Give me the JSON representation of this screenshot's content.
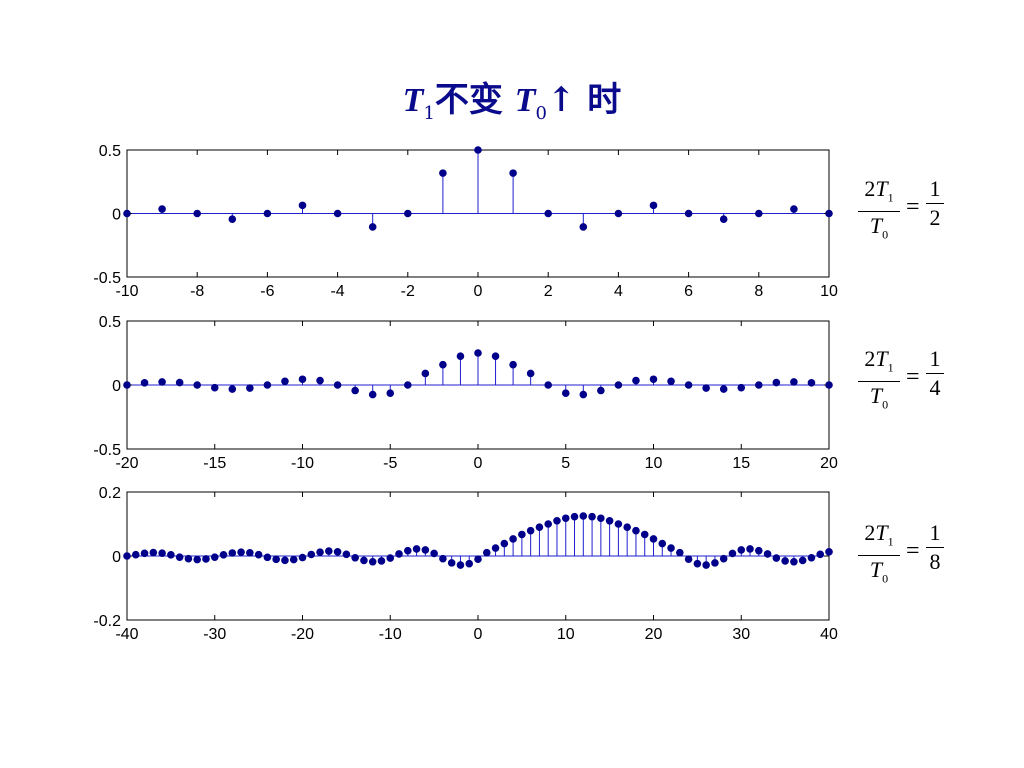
{
  "title": {
    "t1": "T",
    "t1_sub": "1",
    "middle": "不变 ",
    "t0": "T",
    "t0_sub": "0",
    "tail": "↑ 时"
  },
  "formulas": [
    {
      "num_coef": "2",
      "num_var": "T",
      "num_sub": "1",
      "den_var": "T",
      "den_sub": "0",
      "eq": "=",
      "rhs_num": "1",
      "rhs_den": "2"
    },
    {
      "num_coef": "2",
      "num_var": "T",
      "num_sub": "1",
      "den_var": "T",
      "den_sub": "0",
      "eq": "=",
      "rhs_num": "1",
      "rhs_den": "4"
    },
    {
      "num_coef": "2",
      "num_var": "T",
      "num_sub": "1",
      "den_var": "T",
      "den_sub": "0",
      "eq": "=",
      "rhs_num": "1",
      "rhs_den": "8"
    }
  ],
  "colors": {
    "stem": "#1f1fd0",
    "marker": "#00008b",
    "axes": "#000000"
  },
  "chart_data": [
    {
      "type": "stem",
      "xlim": [
        -10,
        10
      ],
      "ylim": [
        -0.5,
        0.5
      ],
      "xticks": [
        "-10",
        "-8",
        "-6",
        "-4",
        "-2",
        "0",
        "2",
        "4",
        "6",
        "8",
        "10"
      ],
      "yticks": [
        "-0.5",
        "0",
        "0.5"
      ],
      "x": [
        -10,
        -9,
        -8,
        -7,
        -6,
        -5,
        -4,
        -3,
        -2,
        -1,
        0,
        1,
        2,
        3,
        4,
        5,
        6,
        7,
        8,
        9,
        10
      ],
      "y": [
        0,
        0.035,
        0,
        -0.045,
        0,
        0.064,
        0,
        -0.106,
        0,
        0.318,
        0.5,
        0.318,
        0,
        -0.106,
        0,
        0.064,
        0,
        -0.045,
        0,
        0.035,
        0
      ]
    },
    {
      "type": "stem",
      "xlim": [
        -20,
        20
      ],
      "ylim": [
        -0.5,
        0.5
      ],
      "xticks": [
        "-20",
        "-15",
        "-10",
        "-5",
        "0",
        "5",
        "10",
        "15",
        "20"
      ],
      "yticks": [
        "-0.5",
        "0",
        "0.5"
      ],
      "x": [
        -20,
        -19,
        -18,
        -17,
        -16,
        -15,
        -14,
        -13,
        -12,
        -11,
        -10,
        -9,
        -8,
        -7,
        -6,
        -5,
        -4,
        -3,
        -2,
        -1,
        0,
        1,
        2,
        3,
        4,
        5,
        6,
        7,
        8,
        9,
        10,
        11,
        12,
        13,
        14,
        15,
        16,
        17,
        18,
        19,
        20
      ],
      "y": [
        0,
        0.017,
        0.024,
        0.019,
        0,
        -0.021,
        -0.032,
        -0.024,
        0,
        0.029,
        0.045,
        0.035,
        0,
        -0.043,
        -0.075,
        -0.064,
        0,
        0.09,
        0.159,
        0.225,
        0.25,
        0.225,
        0.159,
        0.09,
        0,
        -0.064,
        -0.075,
        -0.043,
        0,
        0.035,
        0.045,
        0.029,
        0,
        -0.024,
        -0.032,
        -0.021,
        0,
        0.019,
        0.024,
        0.017,
        0
      ]
    },
    {
      "type": "stem",
      "xlim": [
        -40,
        40
      ],
      "ylim": [
        -0.2,
        0.2
      ],
      "xticks": [
        "-40",
        "-30",
        "-20",
        "-10",
        "0",
        "10",
        "20",
        "30",
        "40"
      ],
      "yticks": [
        "-0.2",
        "0",
        "0.2"
      ],
      "x": [
        -40,
        -39,
        -38,
        -37,
        -36,
        -35,
        -34,
        -33,
        -32,
        -31,
        -30,
        -29,
        -28,
        -27,
        -26,
        -25,
        -24,
        -23,
        -22,
        -21,
        -20,
        -19,
        -18,
        -17,
        -16,
        -15,
        -14,
        -13,
        -12,
        -11,
        -10,
        -9,
        -8,
        -7,
        -6,
        -5,
        -4,
        -3,
        -2,
        -1,
        0,
        1,
        2,
        3,
        4,
        5,
        6,
        7,
        8,
        9,
        10,
        11,
        12,
        13,
        14,
        15,
        16,
        17,
        18,
        19,
        20,
        21,
        22,
        23,
        24,
        25,
        26,
        27,
        28,
        29,
        30,
        31,
        32,
        33,
        34,
        35,
        36,
        37,
        38,
        39,
        40
      ],
      "y": [
        0,
        0.0041,
        0.0083,
        0.0106,
        0.0088,
        0.0036,
        -0.0036,
        -0.0085,
        -0.0111,
        -0.0092,
        -0.0038,
        0.0038,
        0.0094,
        0.0121,
        0.0101,
        0.0042,
        -0.0042,
        -0.0104,
        -0.0136,
        -0.0113,
        -0.0047,
        0.0047,
        0.0118,
        0.0153,
        0.013,
        0.0054,
        -0.0055,
        -0.0138,
        -0.018,
        -0.0153,
        -0.0064,
        0.0066,
        0.0167,
        0.0221,
        0.019,
        0.0081,
        -0.0085,
        -0.0215,
        -0.0283,
        -0.024,
        -0.01,
        0.0104,
        0.0249,
        0.0389,
        0.0535,
        0.0672,
        0.0791,
        0.09,
        0.1,
        0.11,
        0.118,
        0.123,
        0.125,
        0.123,
        0.118,
        0.11,
        0.1,
        0.09,
        0.0791,
        0.0672,
        0.0535,
        0.0389,
        0.0249,
        0.0104,
        -0.01,
        -0.024,
        -0.0283,
        -0.0215,
        -0.0085,
        0.0081,
        0.019,
        0.0221,
        0.0167,
        0.0066,
        -0.0064,
        -0.0153,
        -0.018,
        -0.0138,
        -0.0055,
        0.0054,
        0.013
      ]
    }
  ]
}
